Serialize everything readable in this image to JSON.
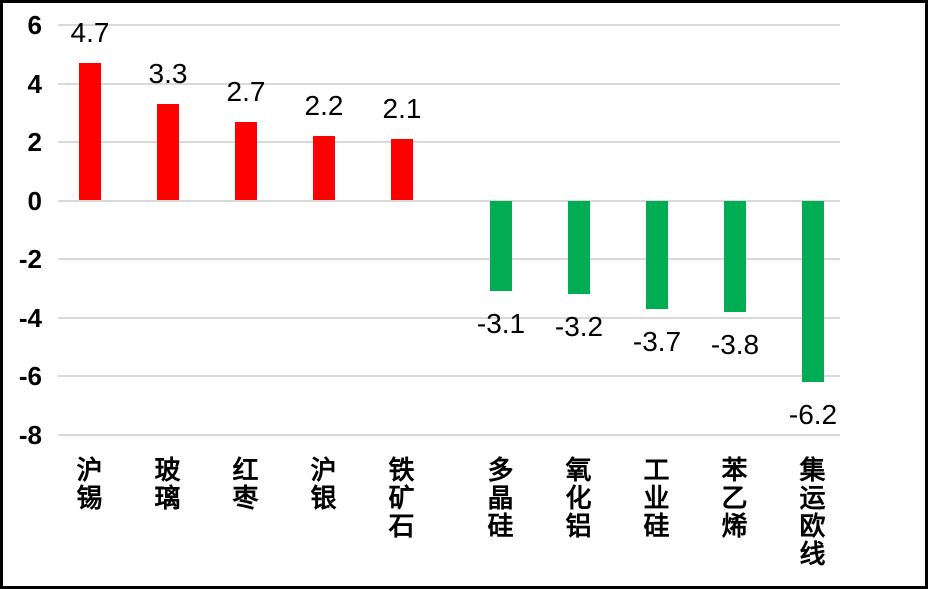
{
  "chart_data": {
    "type": "bar",
    "title": "",
    "xlabel": "",
    "ylabel": "",
    "categories": [
      "沪锡",
      "玻璃",
      "红枣",
      "沪银",
      "铁矿石",
      "多晶硅",
      "氧化铝",
      "工业硅",
      "苯乙烯",
      "集运欧线"
    ],
    "values": [
      4.7,
      3.3,
      2.7,
      2.2,
      2.1,
      -3.1,
      -3.2,
      -3.7,
      -3.8,
      -6.2
    ],
    "data_labels": [
      "4.7",
      "3.3",
      "2.7",
      "2.2",
      "2.1",
      "-3.1",
      "-3.2",
      "-3.7",
      "-3.8",
      "-6.2"
    ],
    "y_ticks": [
      6,
      4,
      2,
      0,
      -2,
      -4,
      -6,
      -8
    ],
    "y_tick_labels": [
      "6",
      "4",
      "2",
      "0",
      "-2",
      "-4",
      "-6",
      "-8"
    ],
    "ylim": [
      -8,
      6
    ],
    "grid": true,
    "legend_position": "none",
    "colors": {
      "positive_bar": "#FF0000",
      "negative_bar": "#00AD52",
      "gridline": "#D9D9D9",
      "text": "#000000",
      "frame_border": "#000000",
      "background": "#FFFFFF"
    }
  }
}
